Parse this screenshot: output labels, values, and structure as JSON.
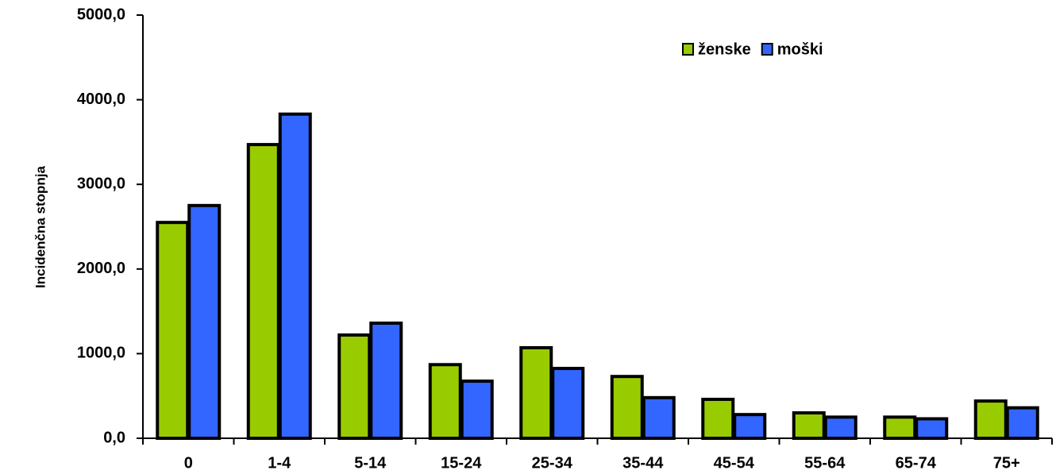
{
  "chart_data": {
    "type": "bar",
    "y_label": "Incidenčna stopnja",
    "categories": [
      "0",
      "1-4",
      "5-14",
      "15-24",
      "25-34",
      "35-44",
      "45-54",
      "55-64",
      "65-74",
      "75+"
    ],
    "series": [
      {
        "name": "ženske",
        "color": "#99cc00",
        "values": [
          2550,
          3470,
          1220,
          870,
          1070,
          730,
          460,
          300,
          250,
          440
        ]
      },
      {
        "name": "moški",
        "color": "#3366ff",
        "values": [
          2750,
          3830,
          1360,
          675,
          825,
          480,
          280,
          250,
          230,
          360
        ]
      }
    ],
    "ylim": [
      0,
      5000
    ],
    "yticks": [
      {
        "value": 0,
        "label": "0,0"
      },
      {
        "value": 1000,
        "label": "1000,0"
      },
      {
        "value": 2000,
        "label": "2000,0"
      },
      {
        "value": 3000,
        "label": "3000,0"
      },
      {
        "value": 4000,
        "label": "4000,0"
      },
      {
        "value": 5000,
        "label": "5000,0"
      }
    ],
    "grid": false,
    "legend": "top-right"
  }
}
